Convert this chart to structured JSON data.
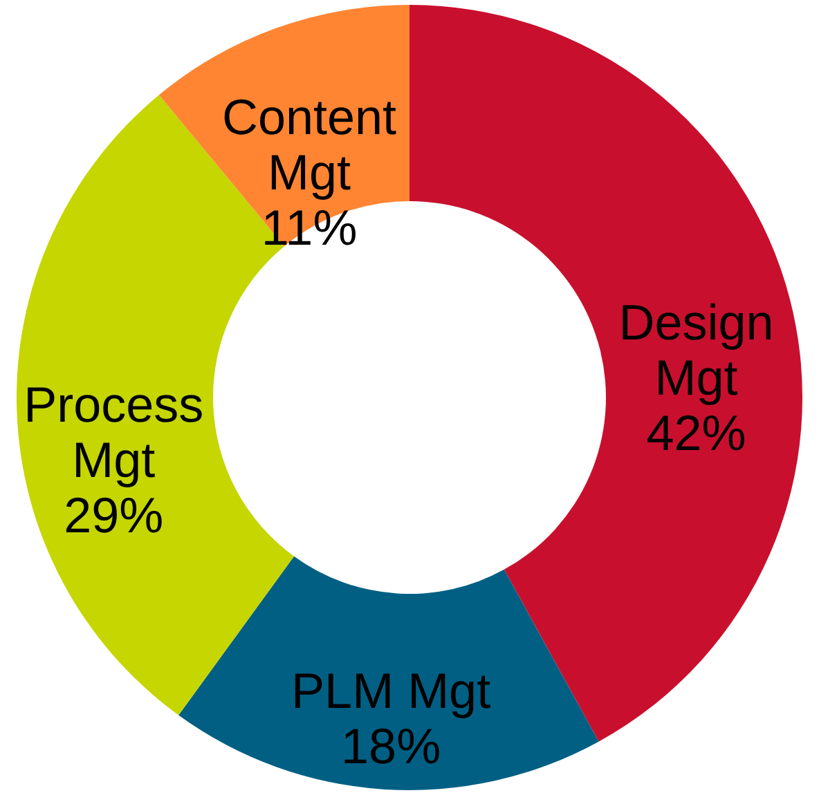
{
  "chart_data": {
    "type": "donut",
    "categories": [
      "Design Mgt",
      "PLM Mgt",
      "Process Mgt",
      "Content Mgt"
    ],
    "values": [
      42,
      18,
      29,
      11
    ],
    "value_labels": [
      "42%",
      "18%",
      "29%",
      "11%"
    ],
    "colors": [
      "#c8102e",
      "#005f83",
      "#c5d600",
      "#ff8533"
    ]
  }
}
